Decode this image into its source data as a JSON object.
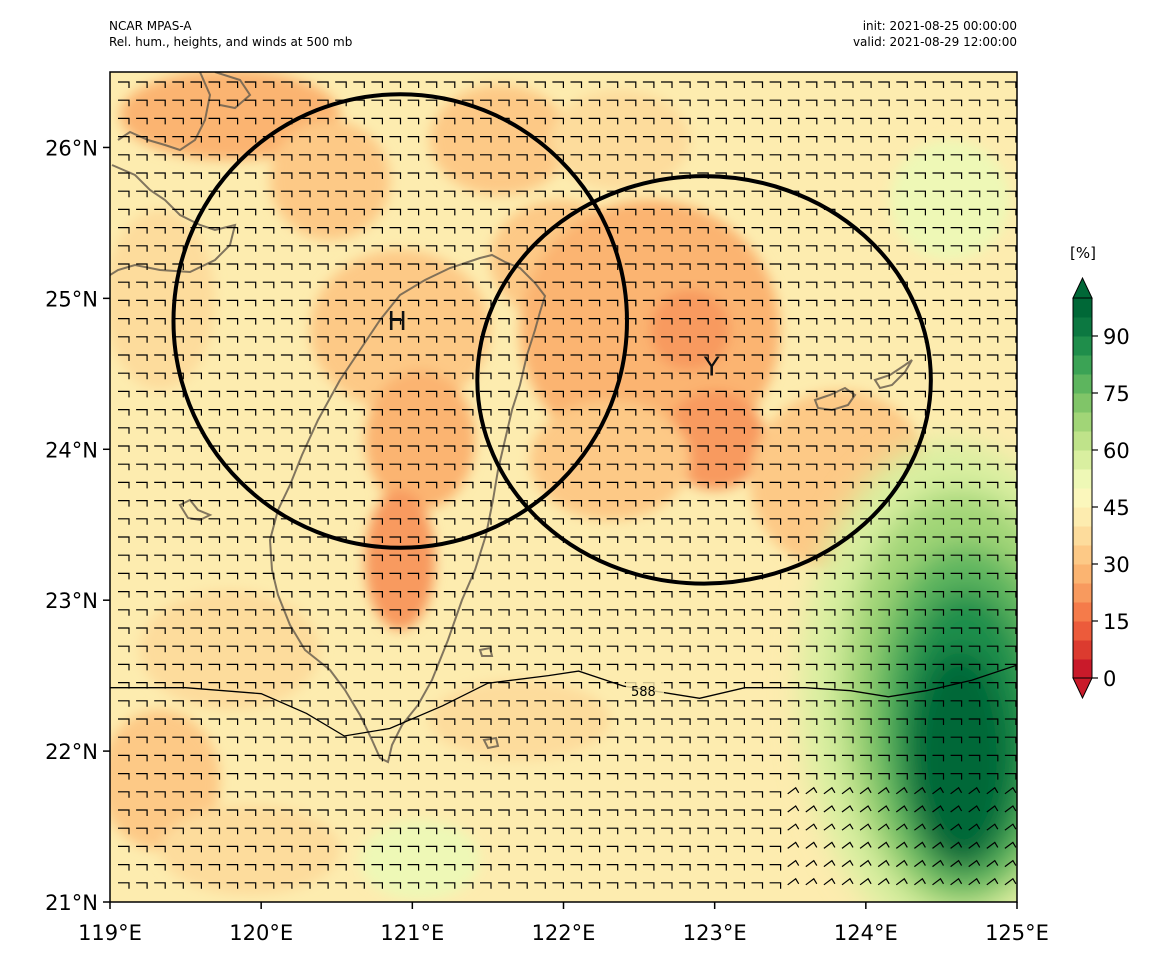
{
  "header": {
    "line1_left": "NCAR MPAS-A",
    "line2_left": "Rel. hum., heights, and winds at 500 mb",
    "line1_right": "init: 2021-08-25 00:00:00",
    "line2_right": "valid: 2021-08-29 12:00:00"
  },
  "map": {
    "lon_range": [
      119,
      125
    ],
    "lat_range": [
      21,
      26.5
    ],
    "x_ticks": [
      "119°E",
      "120°E",
      "121°E",
      "122°E",
      "123°E",
      "124°E",
      "125°E"
    ],
    "y_ticks": [
      "21°N",
      "22°N",
      "23°N",
      "24°N",
      "25°N",
      "26°N"
    ],
    "markers": [
      {
        "label": "H",
        "lon": 120.9,
        "lat": 24.85
      },
      {
        "label": "Y",
        "lon": 122.98,
        "lat": 24.55
      }
    ],
    "circles": [
      {
        "center_lon": 120.92,
        "center_lat": 24.85,
        "radius_deg": 1.5
      },
      {
        "center_lon": 122.93,
        "center_lat": 24.46,
        "radius_deg": 1.5
      }
    ],
    "contour_label": "588",
    "contour_line_588": [
      [
        119,
        22.42
      ],
      [
        119.5,
        22.42
      ],
      [
        120,
        22.38
      ],
      [
        120.3,
        22.25
      ],
      [
        120.55,
        22.1
      ],
      [
        120.85,
        22.15
      ],
      [
        121.2,
        22.3
      ],
      [
        121.5,
        22.45
      ],
      [
        121.9,
        22.5
      ],
      [
        122.1,
        22.53
      ],
      [
        122.4,
        22.43
      ],
      [
        122.9,
        22.35
      ],
      [
        123.2,
        22.42
      ],
      [
        123.6,
        22.42
      ],
      [
        123.9,
        22.4
      ],
      [
        124.15,
        22.36
      ],
      [
        124.4,
        22.4
      ],
      [
        124.7,
        22.47
      ],
      [
        125,
        22.57
      ]
    ]
  },
  "colorbar": {
    "unit": "[%]",
    "tick_labels": [
      "0",
      "15",
      "30",
      "45",
      "60",
      "75",
      "90"
    ],
    "colors": [
      "#c91a2a",
      "#dc3b2f",
      "#ec5b3b",
      "#f57b4a",
      "#f89a5e",
      "#fbb471",
      "#fdc986",
      "#fddc9c",
      "#fdecaf",
      "#fbf7bc",
      "#eef8b6",
      "#d9efa0",
      "#bfe38a",
      "#a1d577",
      "#80c568",
      "#5db55e",
      "#3ba355",
      "#1f8e4b",
      "#0c7841",
      "#006837"
    ],
    "level_step": 5
  }
}
